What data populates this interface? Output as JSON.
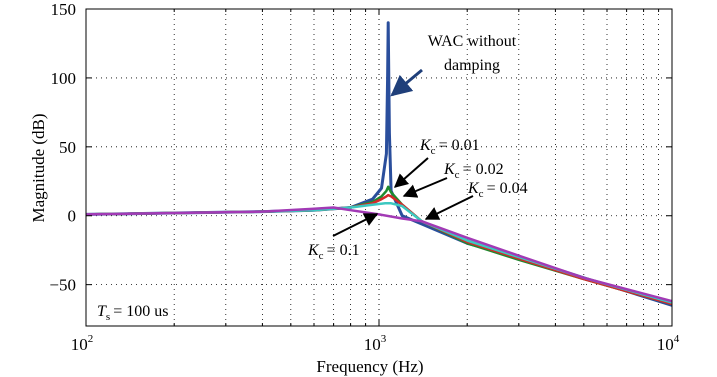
{
  "chart_data": {
    "type": "line",
    "xlabel": "Frequency (Hz)",
    "ylabel": "Magnitude (dB)",
    "xscale": "log",
    "xlim": [
      100,
      10000
    ],
    "ylim": [
      -80,
      150
    ],
    "grid": true,
    "xticks": [
      {
        "value": 100,
        "base": "10",
        "exp": "2"
      },
      {
        "value": 1000,
        "base": "10",
        "exp": "3"
      },
      {
        "value": 10000,
        "base": "10",
        "exp": "4"
      }
    ],
    "yticks": [
      {
        "value": 150,
        "label": "150"
      },
      {
        "value": 100,
        "label": "100"
      },
      {
        "value": 50,
        "label": "50"
      },
      {
        "value": 0,
        "label": "0"
      },
      {
        "value": -50,
        "label": "−50"
      }
    ],
    "series": [
      {
        "key": "wac",
        "color": "#2a4e9c",
        "x": [
          100,
          200,
          400,
          600,
          800,
          950,
          1020,
          1060,
          1070,
          1075,
          1085,
          1100,
          1200,
          1400,
          2000,
          3000,
          5000,
          10000
        ],
        "y": [
          1,
          2,
          3,
          4,
          6,
          12,
          20,
          45,
          100,
          140,
          60,
          18,
          0,
          -6,
          -20,
          -30,
          -45,
          -65
        ]
      },
      {
        "key": "kc001",
        "color": "#1f8a2e",
        "x": [
          100,
          200,
          400,
          600,
          800,
          950,
          1020,
          1060,
          1075,
          1100,
          1200,
          1400,
          2000,
          3000,
          5000,
          10000
        ],
        "y": [
          1,
          2,
          3,
          4,
          6,
          10,
          14,
          18,
          21,
          17,
          8,
          -4,
          -20,
          -32,
          -46,
          -64
        ]
      },
      {
        "key": "kc002",
        "color": "#d42a2a",
        "x": [
          100,
          200,
          400,
          600,
          800,
          950,
          1020,
          1060,
          1075,
          1100,
          1200,
          1400,
          2000,
          3000,
          5000,
          10000
        ],
        "y": [
          1,
          2,
          3,
          4,
          6,
          9,
          12,
          14,
          15,
          14,
          8,
          -4,
          -19,
          -31,
          -46,
          -64
        ]
      },
      {
        "key": "kc004",
        "color": "#3cc8c0",
        "x": [
          100,
          200,
          400,
          600,
          800,
          950,
          1050,
          1100,
          1200,
          1400,
          2000,
          3000,
          5000,
          10000
        ],
        "y": [
          1,
          2,
          3,
          4,
          6,
          8,
          9,
          9,
          7,
          -4,
          -18,
          -30,
          -45,
          -63
        ]
      },
      {
        "key": "kc01",
        "color": "#a23ab5",
        "x": [
          100,
          200,
          400,
          600,
          700,
          800,
          1000,
          1200,
          1400,
          2000,
          3000,
          5000,
          10000
        ],
        "y": [
          1,
          2,
          3,
          5,
          6,
          4,
          1,
          -2,
          -4,
          -16,
          -29,
          -45,
          -62
        ]
      }
    ]
  },
  "annotations": {
    "wac_line1": "WAC without",
    "wac_line2": "damping",
    "kc_symbol": "K",
    "kc_sub": "c",
    "kc001_value": "= 0.01",
    "kc002_value": "= 0.02",
    "kc004_value": "= 0.04",
    "kc01_value": "= 0.1",
    "ts_symbol": "T",
    "ts_sub": "s",
    "ts_value": "= 100 us"
  }
}
